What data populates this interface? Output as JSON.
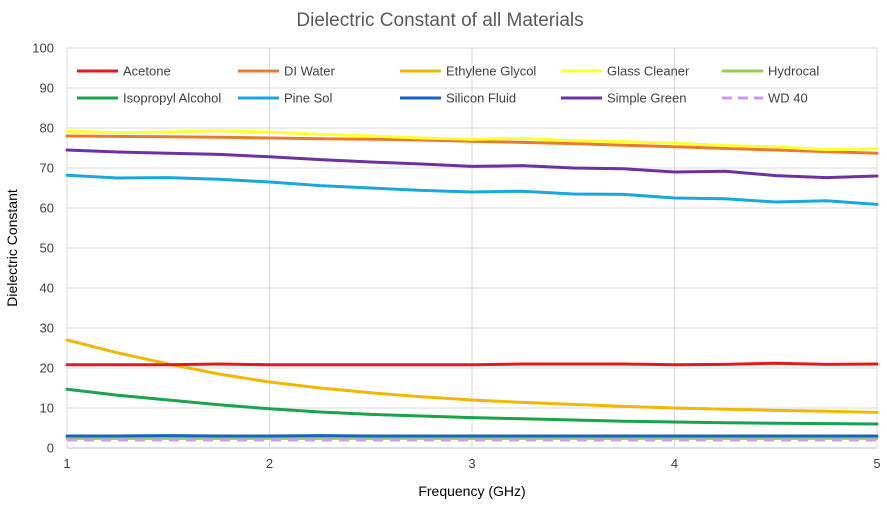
{
  "chart_data": {
    "type": "line",
    "title": "Dielectric Constant of all Materials",
    "xlabel": "Frequency (GHz)",
    "ylabel": "Dielectric Constant",
    "xlim": [
      1,
      5
    ],
    "ylim": [
      0,
      100
    ],
    "xticks": [
      1,
      2,
      3,
      4,
      5
    ],
    "yticks": [
      0,
      10,
      20,
      30,
      40,
      50,
      60,
      70,
      80,
      90,
      100
    ],
    "grid": true,
    "legend_position": "top",
    "x": [
      1,
      1.25,
      1.5,
      1.75,
      2,
      2.25,
      2.5,
      2.75,
      3,
      3.25,
      3.5,
      3.75,
      4,
      4.25,
      4.5,
      4.75,
      5
    ],
    "series": [
      {
        "name": "Acetone",
        "color": "#e31a1c",
        "dash": false,
        "values": [
          20.8,
          20.8,
          20.8,
          21.0,
          20.8,
          20.8,
          20.8,
          20.8,
          20.8,
          21.0,
          21.0,
          21.0,
          20.8,
          20.9,
          21.2,
          20.9,
          21.0
        ]
      },
      {
        "name": "DI Water",
        "color": "#e87b2e",
        "dash": false,
        "values": [
          78.0,
          77.9,
          77.8,
          77.7,
          77.5,
          77.3,
          77.2,
          77.0,
          76.7,
          76.4,
          76.1,
          75.7,
          75.3,
          74.9,
          74.5,
          74.1,
          73.7
        ]
      },
      {
        "name": "Ethylene Glycol",
        "color": "#f2b705",
        "dash": false,
        "values": [
          27.0,
          23.8,
          21.0,
          18.5,
          16.5,
          15.0,
          13.8,
          12.8,
          12.0,
          11.4,
          10.9,
          10.4,
          10.0,
          9.7,
          9.4,
          9.2,
          8.9
        ]
      },
      {
        "name": "Glass Cleaner",
        "color": "#ffff33",
        "dash": false,
        "values": [
          79.2,
          78.8,
          79.0,
          79.3,
          79.0,
          78.4,
          78.0,
          77.5,
          77.2,
          77.4,
          76.8,
          76.6,
          76.2,
          75.6,
          75.3,
          74.6,
          74.8
        ]
      },
      {
        "name": "Hydrocal",
        "color": "#92d050",
        "dash": false,
        "values": [
          2.4,
          2.4,
          2.4,
          2.4,
          2.4,
          2.4,
          2.4,
          2.4,
          2.4,
          2.4,
          2.4,
          2.4,
          2.4,
          2.4,
          2.4,
          2.4,
          2.4
        ]
      },
      {
        "name": "Isopropyl Alcohol",
        "color": "#1aa34a",
        "dash": false,
        "values": [
          14.7,
          13.2,
          12.0,
          10.8,
          9.8,
          9.0,
          8.4,
          8.0,
          7.6,
          7.3,
          7.0,
          6.7,
          6.5,
          6.3,
          6.2,
          6.1,
          6.0
        ]
      },
      {
        "name": "Pine Sol",
        "color": "#1aa7e0",
        "dash": false,
        "values": [
          68.2,
          67.5,
          67.6,
          67.2,
          66.5,
          65.6,
          65.0,
          64.4,
          64.0,
          64.2,
          63.5,
          63.4,
          62.5,
          62.3,
          61.5,
          61.8,
          60.9
        ]
      },
      {
        "name": "Silicon Fluid",
        "color": "#1565c0",
        "dash": false,
        "values": [
          3.0,
          3.0,
          3.1,
          3.0,
          3.0,
          3.1,
          3.0,
          3.0,
          3.0,
          3.0,
          3.0,
          3.0,
          3.0,
          3.0,
          3.0,
          3.0,
          3.0
        ]
      },
      {
        "name": "Simple Green",
        "color": "#7030a0",
        "dash": false,
        "values": [
          74.5,
          74.0,
          73.7,
          73.4,
          72.8,
          72.1,
          71.5,
          71.0,
          70.4,
          70.6,
          70.0,
          69.8,
          69.0,
          69.2,
          68.1,
          67.6,
          68.0
        ]
      },
      {
        "name": "WD 40",
        "color": "#cc99ff",
        "dash": true,
        "values": [
          2.0,
          2.0,
          2.0,
          2.0,
          2.0,
          2.0,
          2.0,
          2.0,
          2.0,
          2.0,
          2.0,
          2.0,
          2.0,
          2.0,
          2.0,
          2.0,
          2.0
        ]
      }
    ]
  }
}
